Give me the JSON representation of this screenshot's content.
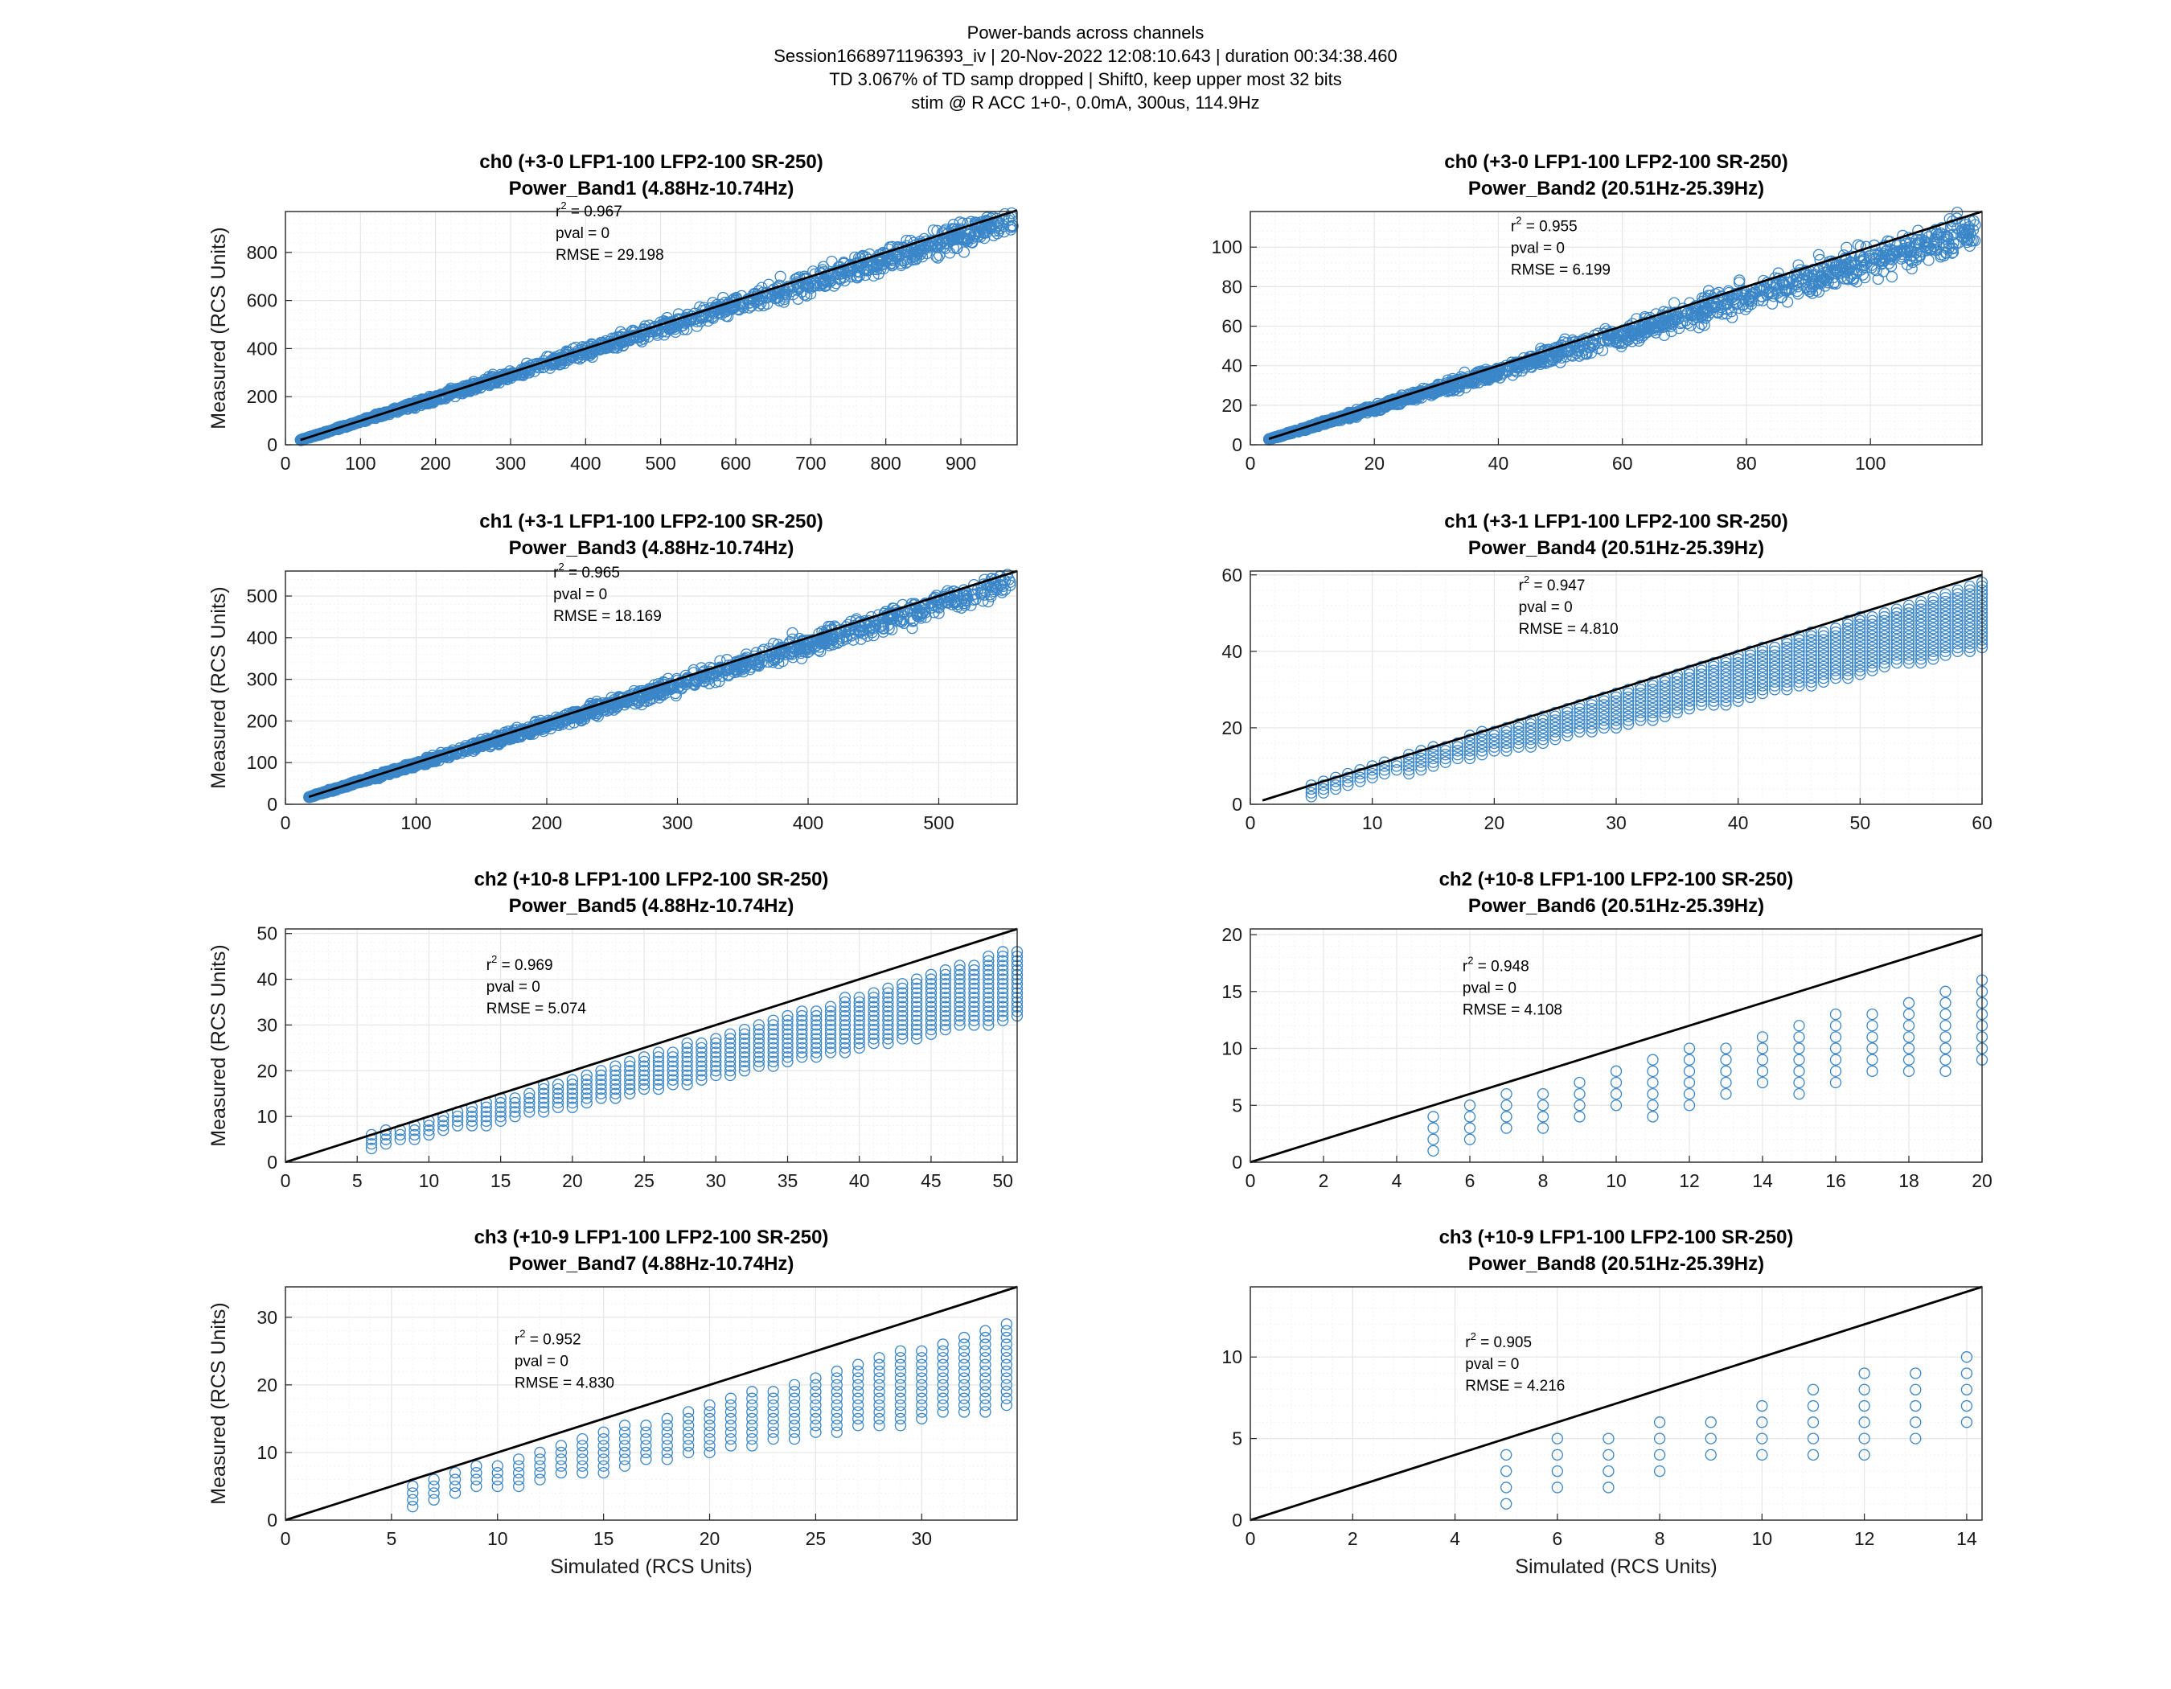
{
  "figure": {
    "suptitle": [
      "Power-bands across channels",
      "Session1668971196393_iv | 20-Nov-2022 12:08:10.643 | duration 00:34:38.460",
      "TD  3.067% of TD samp dropped | Shift0, keep upper most 32 bits",
      "stim @ R ACC 1+0-, 0.0mA, 300us, 114.9Hz"
    ],
    "colors": {
      "marker": "#3a86c8",
      "fit_line": "#000000",
      "grid": "#e6e6e6",
      "axes": "#262626"
    }
  },
  "chart_data": [
    {
      "type": "scatter",
      "title": "ch0 (+3-0 LFP1-100 LFP2-100 SR-250)",
      "subtitle": "Power_Band1 (4.88Hz-10.74Hz)",
      "xlabel": "",
      "ylabel": "Measured (RCS Units)",
      "xlim": [
        0,
        975
      ],
      "ylim": [
        0,
        970
      ],
      "xticks": [
        0,
        100,
        200,
        300,
        400,
        500,
        600,
        700,
        800,
        900
      ],
      "yticks": [
        0,
        200,
        400,
        600,
        800
      ],
      "x_range": [
        20,
        970
      ],
      "slope": 0.97,
      "spread": 0.09,
      "continuous": true,
      "fit_line": {
        "x": [
          20,
          975
        ],
        "y": [
          20,
          975
        ]
      },
      "stats": {
        "r2_label": "r",
        "r2_value": " = 0.967",
        "pval": "pval = 0",
        "rmse": "RMSE = 29.198"
      },
      "stats_pos": [
        360,
        950
      ],
      "grid": true
    },
    {
      "type": "scatter",
      "title": "ch0 (+3-0 LFP1-100 LFP2-100 SR-250)",
      "subtitle": "Power_Band2 (20.51Hz-25.39Hz)",
      "xlabel": "",
      "ylabel": "",
      "xlim": [
        0,
        118
      ],
      "ylim": [
        0,
        118
      ],
      "xticks": [
        0,
        20,
        40,
        60,
        80,
        100
      ],
      "yticks": [
        0,
        20,
        40,
        60,
        80,
        100
      ],
      "x_range": [
        3,
        117
      ],
      "slope": 0.93,
      "spread": 0.12,
      "continuous": true,
      "fit_line": {
        "x": [
          3,
          118
        ],
        "y": [
          3,
          118
        ]
      },
      "stats": {
        "r2_label": "r",
        "r2_value": " = 0.955",
        "pval": "pval = 0",
        "rmse": "RMSE = 6.199"
      },
      "stats_pos": [
        42,
        108
      ],
      "grid": true
    },
    {
      "type": "scatter",
      "title": "ch1 (+3-1 LFP1-100 LFP2-100 SR-250)",
      "subtitle": "Power_Band3 (4.88Hz-10.74Hz)",
      "xlabel": "",
      "ylabel": "Measured (RCS Units)",
      "xlim": [
        0,
        560
      ],
      "ylim": [
        0,
        560
      ],
      "xticks": [
        0,
        100,
        200,
        300,
        400,
        500
      ],
      "yticks": [
        0,
        100,
        200,
        300,
        400,
        500
      ],
      "x_range": [
        18,
        555
      ],
      "slope": 0.96,
      "spread": 0.09,
      "continuous": true,
      "fit_line": {
        "x": [
          18,
          560
        ],
        "y": [
          18,
          560
        ]
      },
      "stats": {
        "r2_label": "r",
        "r2_value": " = 0.965",
        "pval": "pval = 0",
        "rmse": "RMSE = 18.169"
      },
      "stats_pos": [
        205,
        545
      ],
      "grid": true
    },
    {
      "type": "scatter",
      "title": "ch1 (+3-1 LFP1-100 LFP2-100 SR-250)",
      "subtitle": "Power_Band4 (20.51Hz-25.39Hz)",
      "xlabel": "",
      "ylabel": "",
      "xlim": [
        0,
        60
      ],
      "ylim": [
        0,
        61
      ],
      "xticks": [
        0,
        10,
        20,
        30,
        40,
        50,
        60
      ],
      "yticks": [
        0,
        20,
        40,
        60
      ],
      "x_range": [
        5,
        60
      ],
      "slope": 0.88,
      "spread": 0.14,
      "continuous": false,
      "fit_line": {
        "x": [
          1,
          60
        ],
        "y": [
          1,
          60
        ]
      },
      "stats": {
        "r2_label": "r",
        "r2_value": " = 0.947",
        "pval": "pval = 0",
        "rmse": "RMSE = 4.810"
      },
      "stats_pos": [
        22,
        56
      ],
      "grid": true
    },
    {
      "type": "scatter",
      "title": "ch2 (+10-8 LFP1-100 LFP2-100 SR-250)",
      "subtitle": "Power_Band5 (4.88Hz-10.74Hz)",
      "xlabel": "",
      "ylabel": "Measured (RCS Units)",
      "xlim": [
        0,
        51
      ],
      "ylim": [
        0,
        51
      ],
      "xticks": [
        0,
        5,
        10,
        15,
        20,
        25,
        30,
        35,
        40,
        45,
        50
      ],
      "yticks": [
        0,
        10,
        20,
        30,
        40,
        50
      ],
      "x_range": [
        6,
        51
      ],
      "slope": 0.82,
      "spread": 0.15,
      "continuous": false,
      "fit_line": {
        "x": [
          0,
          51
        ],
        "y": [
          0,
          51
        ]
      },
      "stats": {
        "r2_label": "r",
        "r2_value": " = 0.969",
        "pval": "pval = 0",
        "rmse": "RMSE = 5.074"
      },
      "stats_pos": [
        14,
        42
      ],
      "grid": true
    },
    {
      "type": "scatter",
      "title": "ch2 (+10-8 LFP1-100 LFP2-100 SR-250)",
      "subtitle": "Power_Band6 (20.51Hz-25.39Hz)",
      "xlabel": "",
      "ylabel": "",
      "xlim": [
        0,
        20
      ],
      "ylim": [
        0,
        20.5
      ],
      "xticks": [
        0,
        2,
        4,
        6,
        8,
        10,
        12,
        14,
        16,
        18,
        20
      ],
      "yticks": [
        0,
        5,
        10,
        15,
        20
      ],
      "x_range": [
        5,
        20
      ],
      "slope": 0.68,
      "spread": 0.22,
      "continuous": false,
      "fit_line": {
        "x": [
          0,
          20
        ],
        "y": [
          0,
          20
        ]
      },
      "stats": {
        "r2_label": "r",
        "r2_value": " = 0.948",
        "pval": "pval = 0",
        "rmse": "RMSE = 4.108"
      },
      "stats_pos": [
        5.8,
        16.8
      ],
      "grid": true
    },
    {
      "type": "scatter",
      "title": "ch3 (+10-9 LFP1-100 LFP2-100 SR-250)",
      "subtitle": "Power_Band7 (4.88Hz-10.74Hz)",
      "xlabel": "Simulated (RCS Units)",
      "ylabel": "Measured (RCS Units)",
      "xlim": [
        0,
        34.5
      ],
      "ylim": [
        0,
        34.5
      ],
      "xticks": [
        0,
        5,
        10,
        15,
        20,
        25,
        30
      ],
      "yticks": [
        0,
        10,
        20,
        30
      ],
      "x_range": [
        6,
        34
      ],
      "slope": 0.74,
      "spread": 0.2,
      "continuous": false,
      "fit_line": {
        "x": [
          0,
          34.5
        ],
        "y": [
          0,
          34.5
        ]
      },
      "stats": {
        "r2_label": "r",
        "r2_value": " = 0.952",
        "pval": "pval = 0",
        "rmse": "RMSE = 4.830"
      },
      "stats_pos": [
        10.8,
        26
      ],
      "grid": true
    },
    {
      "type": "scatter",
      "title": "ch3 (+10-9 LFP1-100 LFP2-100 SR-250)",
      "subtitle": "Power_Band8 (20.51Hz-25.39Hz)",
      "xlabel": "Simulated (RCS Units)",
      "ylabel": "",
      "xlim": [
        0,
        14.3
      ],
      "ylim": [
        0,
        14.3
      ],
      "xticks": [
        0,
        2,
        4,
        6,
        8,
        10,
        12,
        14
      ],
      "yticks": [
        0,
        5,
        10
      ],
      "x_range": [
        5,
        14
      ],
      "slope": 0.62,
      "spread": 0.25,
      "continuous": false,
      "fit_line": {
        "x": [
          0,
          14.3
        ],
        "y": [
          0,
          14.3
        ]
      },
      "stats": {
        "r2_label": "r",
        "r2_value": " = 0.905",
        "pval": "pval = 0",
        "rmse": "RMSE = 4.216"
      },
      "stats_pos": [
        4.2,
        10.6
      ],
      "grid": true
    }
  ]
}
